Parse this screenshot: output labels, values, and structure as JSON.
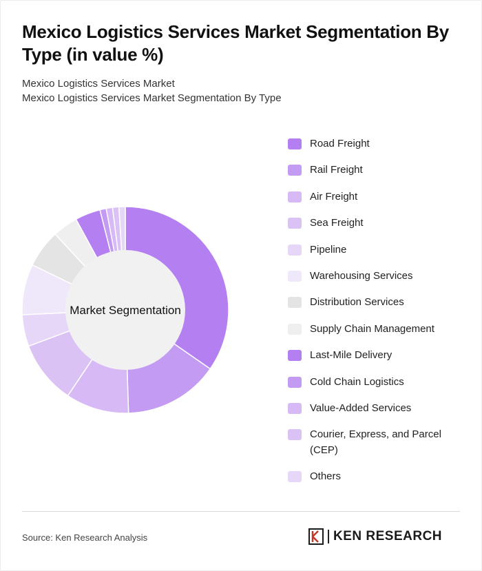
{
  "title": "Mexico Logistics Services Market Segmentation By Type (in value %)",
  "subtitle_1": "Mexico Logistics Services Market",
  "subtitle_2": "Mexico Logistics Services Market Segmentation By Type",
  "center_label": "Market Segmentation",
  "source": "Source: Ken Research Analysis",
  "logo_text": "KEN RESEARCH",
  "chart_data": {
    "type": "pie",
    "donut": true,
    "legend_position": "right",
    "categories": [
      "Road Freight",
      "Rail Freight",
      "Air Freight",
      "Sea Freight",
      "Pipeline",
      "Warehousing Services",
      "Distribution Services",
      "Supply Chain Management",
      "Last-Mile Delivery",
      "Cold Chain Logistics",
      "Value-Added Services",
      "Courier, Express, and Parcel (CEP)",
      "Others"
    ],
    "values": [
      35,
      15,
      10,
      10,
      5,
      8,
      6,
      4,
      4,
      1,
      1,
      1,
      1
    ],
    "colors": [
      "#b47ff0",
      "#c39bf2",
      "#d7b9f6",
      "#dbc2f5",
      "#e6d6f8",
      "#efe8fa",
      "#e4e4e4",
      "#efefef",
      "#b47ff0",
      "#c39bf2",
      "#d7b9f6",
      "#dbc2f5",
      "#e6d6f8"
    ]
  }
}
